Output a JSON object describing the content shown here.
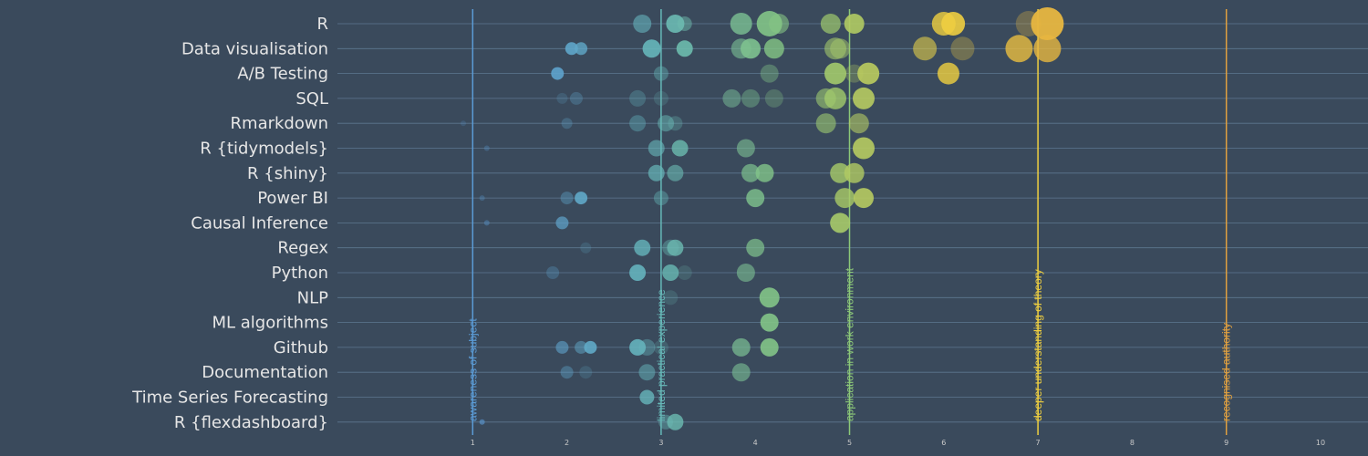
{
  "chart_data": {
    "type": "scatter",
    "title": "",
    "xlabel": "",
    "ylabel": "",
    "xlim": [
      0,
      10
    ],
    "x_ticks": [
      1,
      2,
      3,
      4,
      5,
      6,
      7,
      8,
      9,
      10
    ],
    "grid": true,
    "categories": [
      "R",
      "Data visualisation",
      "A/B Testing",
      "SQL",
      "Rmarkdown",
      "R {tidymodels}",
      "R {shiny}",
      "Power BI",
      "Causal Inference",
      "Regex",
      "Python",
      "NLP",
      "ML algorithms",
      "Github",
      "Documentation",
      "Time Series Forecasting",
      "R {flexdashboard}"
    ],
    "reference_lines": [
      {
        "x": 1,
        "label": "awareness of subject",
        "color": "#5b9bd5"
      },
      {
        "x": 3,
        "label": "limited practical experience",
        "color": "#67b8b8"
      },
      {
        "x": 5,
        "label": "application in work environment",
        "color": "#8cc878"
      },
      {
        "x": 7,
        "label": "deeper understanding of theory",
        "color": "#f0d040"
      },
      {
        "x": 9,
        "label": "recognised authority",
        "color": "#e0a040"
      }
    ],
    "points": [
      {
        "category": "R",
        "x": 2.8,
        "size": 10,
        "opacity": 0.6
      },
      {
        "category": "R",
        "x": 3.15,
        "size": 10,
        "opacity": 0.9
      },
      {
        "category": "R",
        "x": 3.25,
        "size": 8,
        "opacity": 0.5
      },
      {
        "category": "R",
        "x": 3.85,
        "size": 12,
        "opacity": 0.8
      },
      {
        "category": "R",
        "x": 4.15,
        "size": 14,
        "opacity": 0.9
      },
      {
        "category": "R",
        "x": 4.25,
        "size": 11,
        "opacity": 0.6
      },
      {
        "category": "R",
        "x": 4.8,
        "size": 11,
        "opacity": 0.7
      },
      {
        "category": "R",
        "x": 5.05,
        "size": 11,
        "opacity": 0.9
      },
      {
        "category": "R",
        "x": 6.0,
        "size": 13,
        "opacity": 0.8
      },
      {
        "category": "R",
        "x": 6.1,
        "size": 13,
        "opacity": 0.9
      },
      {
        "category": "R",
        "x": 6.9,
        "size": 14,
        "opacity": 0.3
      },
      {
        "category": "R",
        "x": 7.1,
        "size": 18,
        "opacity": 0.95
      },
      {
        "category": "Data visualisation",
        "x": 2.05,
        "size": 7,
        "opacity": 0.9
      },
      {
        "category": "Data visualisation",
        "x": 2.15,
        "size": 7,
        "opacity": 0.8
      },
      {
        "category": "Data visualisation",
        "x": 2.9,
        "size": 10,
        "opacity": 0.9
      },
      {
        "category": "Data visualisation",
        "x": 3.25,
        "size": 9,
        "opacity": 0.9
      },
      {
        "category": "Data visualisation",
        "x": 3.85,
        "size": 11,
        "opacity": 0.6
      },
      {
        "category": "Data visualisation",
        "x": 3.95,
        "size": 11,
        "opacity": 0.9
      },
      {
        "category": "Data visualisation",
        "x": 4.2,
        "size": 11,
        "opacity": 0.8
      },
      {
        "category": "Data visualisation",
        "x": 4.85,
        "size": 12,
        "opacity": 0.6
      },
      {
        "category": "Data visualisation",
        "x": 4.9,
        "size": 11,
        "opacity": 0.5
      },
      {
        "category": "Data visualisation",
        "x": 5.8,
        "size": 13,
        "opacity": 0.6
      },
      {
        "category": "Data visualisation",
        "x": 6.2,
        "size": 13,
        "opacity": 0.3
      },
      {
        "category": "Data visualisation",
        "x": 6.8,
        "size": 15,
        "opacity": 0.8
      },
      {
        "category": "Data visualisation",
        "x": 7.1,
        "size": 15,
        "opacity": 0.8
      },
      {
        "category": "A/B Testing",
        "x": 1.9,
        "size": 7,
        "opacity": 0.9
      },
      {
        "category": "A/B Testing",
        "x": 3.0,
        "size": 8,
        "opacity": 0.4
      },
      {
        "category": "A/B Testing",
        "x": 4.15,
        "size": 10,
        "opacity": 0.4
      },
      {
        "category": "A/B Testing",
        "x": 4.85,
        "size": 12,
        "opacity": 0.9
      },
      {
        "category": "A/B Testing",
        "x": 5.05,
        "size": 10,
        "opacity": 0.3
      },
      {
        "category": "A/B Testing",
        "x": 5.2,
        "size": 12,
        "opacity": 0.9
      },
      {
        "category": "A/B Testing",
        "x": 6.05,
        "size": 12,
        "opacity": 0.8
      },
      {
        "category": "SQL",
        "x": 1.95,
        "size": 6,
        "opacity": 0.2
      },
      {
        "category": "SQL",
        "x": 2.1,
        "size": 7,
        "opacity": 0.3
      },
      {
        "category": "SQL",
        "x": 2.75,
        "size": 9,
        "opacity": 0.3
      },
      {
        "category": "SQL",
        "x": 3.0,
        "size": 8,
        "opacity": 0.2
      },
      {
        "category": "SQL",
        "x": 3.75,
        "size": 10,
        "opacity": 0.5
      },
      {
        "category": "SQL",
        "x": 3.95,
        "size": 10,
        "opacity": 0.4
      },
      {
        "category": "SQL",
        "x": 4.2,
        "size": 10,
        "opacity": 0.3
      },
      {
        "category": "SQL",
        "x": 4.75,
        "size": 11,
        "opacity": 0.6
      },
      {
        "category": "SQL",
        "x": 4.85,
        "size": 12,
        "opacity": 0.8
      },
      {
        "category": "SQL",
        "x": 5.15,
        "size": 12,
        "opacity": 0.9
      },
      {
        "category": "Rmarkdown",
        "x": 0.9,
        "size": 3,
        "opacity": 0.2
      },
      {
        "category": "Rmarkdown",
        "x": 2.0,
        "size": 6,
        "opacity": 0.3
      },
      {
        "category": "Rmarkdown",
        "x": 2.75,
        "size": 9,
        "opacity": 0.4
      },
      {
        "category": "Rmarkdown",
        "x": 3.05,
        "size": 9,
        "opacity": 0.5
      },
      {
        "category": "Rmarkdown",
        "x": 3.15,
        "size": 8,
        "opacity": 0.3
      },
      {
        "category": "Rmarkdown",
        "x": 4.75,
        "size": 11,
        "opacity": 0.6
      },
      {
        "category": "Rmarkdown",
        "x": 5.1,
        "size": 11,
        "opacity": 0.6
      },
      {
        "category": "R {tidymodels}",
        "x": 1.15,
        "size": 3,
        "opacity": 0.3
      },
      {
        "category": "R {tidymodels}",
        "x": 2.95,
        "size": 9,
        "opacity": 0.6
      },
      {
        "category": "R {tidymodels}",
        "x": 3.2,
        "size": 9,
        "opacity": 0.8
      },
      {
        "category": "R {tidymodels}",
        "x": 3.9,
        "size": 10,
        "opacity": 0.6
      },
      {
        "category": "R {tidymodels}",
        "x": 5.15,
        "size": 12,
        "opacity": 0.9
      },
      {
        "category": "R {shiny}",
        "x": 2.95,
        "size": 9,
        "opacity": 0.7
      },
      {
        "category": "R {shiny}",
        "x": 3.15,
        "size": 9,
        "opacity": 0.6
      },
      {
        "category": "R {shiny}",
        "x": 3.95,
        "size": 10,
        "opacity": 0.7
      },
      {
        "category": "R {shiny}",
        "x": 4.1,
        "size": 10,
        "opacity": 0.8
      },
      {
        "category": "R {shiny}",
        "x": 4.9,
        "size": 11,
        "opacity": 0.8
      },
      {
        "category": "R {shiny}",
        "x": 5.05,
        "size": 11,
        "opacity": 0.8
      },
      {
        "category": "Power BI",
        "x": 1.1,
        "size": 3,
        "opacity": 0.3
      },
      {
        "category": "Power BI",
        "x": 2.0,
        "size": 7,
        "opacity": 0.4
      },
      {
        "category": "Power BI",
        "x": 2.15,
        "size": 7,
        "opacity": 0.9
      },
      {
        "category": "Power BI",
        "x": 3.0,
        "size": 8,
        "opacity": 0.4
      },
      {
        "category": "Power BI",
        "x": 4.0,
        "size": 10,
        "opacity": 0.8
      },
      {
        "category": "Power BI",
        "x": 4.95,
        "size": 11,
        "opacity": 0.8
      },
      {
        "category": "Power BI",
        "x": 5.15,
        "size": 11,
        "opacity": 0.9
      },
      {
        "category": "Causal Inference",
        "x": 1.15,
        "size": 3,
        "opacity": 0.4
      },
      {
        "category": "Causal Inference",
        "x": 1.95,
        "size": 7,
        "opacity": 0.7
      },
      {
        "category": "Causal Inference",
        "x": 4.9,
        "size": 11,
        "opacity": 0.9
      },
      {
        "category": "Regex",
        "x": 2.2,
        "size": 6,
        "opacity": 0.2
      },
      {
        "category": "Regex",
        "x": 2.8,
        "size": 9,
        "opacity": 0.8
      },
      {
        "category": "Regex",
        "x": 3.1,
        "size": 9,
        "opacity": 0.4
      },
      {
        "category": "Regex",
        "x": 3.15,
        "size": 9,
        "opacity": 0.8
      },
      {
        "category": "Regex",
        "x": 4.0,
        "size": 10,
        "opacity": 0.7
      },
      {
        "category": "Python",
        "x": 1.85,
        "size": 7,
        "opacity": 0.3
      },
      {
        "category": "Python",
        "x": 2.75,
        "size": 9,
        "opacity": 0.9
      },
      {
        "category": "Python",
        "x": 3.1,
        "size": 9,
        "opacity": 0.8
      },
      {
        "category": "Python",
        "x": 3.25,
        "size": 8,
        "opacity": 0.2
      },
      {
        "category": "Python",
        "x": 3.9,
        "size": 10,
        "opacity": 0.6
      },
      {
        "category": "NLP",
        "x": 3.1,
        "size": 8,
        "opacity": 0.2
      },
      {
        "category": "NLP",
        "x": 4.15,
        "size": 11,
        "opacity": 0.9
      },
      {
        "category": "ML algorithms",
        "x": 4.15,
        "size": 10,
        "opacity": 0.9
      },
      {
        "category": "Github",
        "x": 1.95,
        "size": 7,
        "opacity": 0.6
      },
      {
        "category": "Github",
        "x": 2.15,
        "size": 7,
        "opacity": 0.5
      },
      {
        "category": "Github",
        "x": 2.25,
        "size": 7,
        "opacity": 0.9
      },
      {
        "category": "Github",
        "x": 2.75,
        "size": 9,
        "opacity": 0.9
      },
      {
        "category": "Github",
        "x": 2.85,
        "size": 9,
        "opacity": 0.4
      },
      {
        "category": "Github",
        "x": 3.0,
        "size": 8,
        "opacity": 0.2
      },
      {
        "category": "Github",
        "x": 3.85,
        "size": 10,
        "opacity": 0.7
      },
      {
        "category": "Github",
        "x": 4.15,
        "size": 10,
        "opacity": 0.9
      },
      {
        "category": "Documentation",
        "x": 2.0,
        "size": 7,
        "opacity": 0.4
      },
      {
        "category": "Documentation",
        "x": 2.2,
        "size": 7,
        "opacity": 0.2
      },
      {
        "category": "Documentation",
        "x": 2.85,
        "size": 9,
        "opacity": 0.5
      },
      {
        "category": "Documentation",
        "x": 3.85,
        "size": 10,
        "opacity": 0.6
      },
      {
        "category": "Time Series Forecasting",
        "x": 2.85,
        "size": 8,
        "opacity": 0.8
      },
      {
        "category": "R {flexdashboard}",
        "x": 1.1,
        "size": 3,
        "opacity": 0.6
      },
      {
        "category": "R {flexdashboard}",
        "x": 3.05,
        "size": 8,
        "opacity": 0.4
      },
      {
        "category": "R {flexdashboard}",
        "x": 3.15,
        "size": 9,
        "opacity": 0.8
      }
    ]
  },
  "colors": {
    "background": "#3a4a5c",
    "grid": "#6c8aa6",
    "category_label": "#e6e6e6",
    "tick_label": "#c9c9c9",
    "gradient_stops": [
      "#5b9bd5",
      "#67b8b8",
      "#8cc878",
      "#f0d040",
      "#e0a040"
    ]
  }
}
